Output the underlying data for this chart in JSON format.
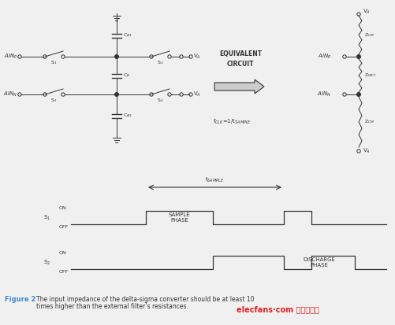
{
  "bg_color": "#f0f0f0",
  "fig_width": 5.02,
  "fig_height": 4.13,
  "caption_bold": "Figure 2",
  "caption_text": " The input impedance of the delta-sigma converter should be at least 10\ntimes higher than the external filter’s resistances.",
  "watermark": "elecfans·com 电子发烧友"
}
